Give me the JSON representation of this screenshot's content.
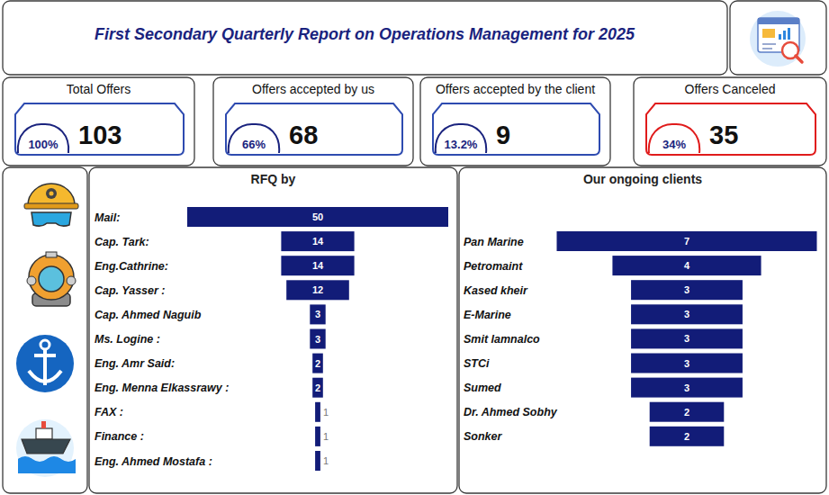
{
  "title": "First Secondary Quarterly Report on Operations Management for 2025",
  "kpis": [
    {
      "label": "Total Offers",
      "value": 103,
      "percent": "100%",
      "color": "#2e4bb0"
    },
    {
      "label": "Offers accepted by us",
      "value": 68,
      "percent": "66%",
      "color": "#2e4bb0"
    },
    {
      "label": "Offers accepted by the client",
      "value": 9,
      "percent": "13.2%",
      "color": "#2e4bb0"
    },
    {
      "label": "Offers Canceled",
      "value": 35,
      "percent": "34%",
      "color": "#e01b1b"
    }
  ],
  "chart_data": [
    {
      "type": "funnel",
      "title": "RFQ by",
      "orientation": "horizontal",
      "data_labels": true,
      "tick_labels": false,
      "color": "#121c78",
      "xlim": [
        0,
        50
      ],
      "categories": [
        "Mail:",
        "Cap. Tark:",
        "Eng.Cathrine:",
        "Cap. Yasser :",
        "Cap. Ahmed Naguib",
        "Ms. Logine :",
        "Eng. Amr Said:",
        "Eng. Menna Elkassrawy :",
        "FAX :",
        "Finance :",
        "Eng. Ahmed Mostafa :"
      ],
      "values": [
        50,
        14,
        14,
        12,
        3,
        3,
        2,
        2,
        1,
        1,
        1
      ]
    },
    {
      "type": "funnel",
      "title": "Our ongoing clients",
      "orientation": "horizontal",
      "data_labels": true,
      "tick_labels": false,
      "color": "#121c78",
      "xlim": [
        0,
        7
      ],
      "categories": [
        "Pan Marine",
        "Petromaint",
        "Kased kheir",
        "E-Marine",
        "Smit lamnalco",
        "STCi",
        "Sumed",
        "Dr. Ahmed Sobhy",
        "Sonker"
      ],
      "values": [
        7,
        4,
        3,
        3,
        3,
        3,
        3,
        2,
        2
      ]
    }
  ]
}
